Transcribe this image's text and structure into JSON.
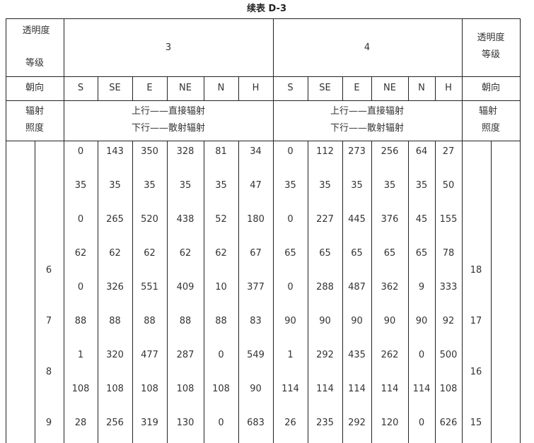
{
  "title": "续表 D-3",
  "header": {
    "left_grade_label_line1": "透明度",
    "left_grade_label_line2": "等级",
    "group_3": "3",
    "group_4": "4",
    "right_grade_label_line1": "透明度",
    "right_grade_label_line2": "等级",
    "orientation_label": "朝向",
    "orientations": [
      "S",
      "SE",
      "E",
      "NE",
      "N",
      "H",
      "S",
      "SE",
      "E",
      "NE",
      "N",
      "H"
    ],
    "irradiance_label_line1": "辐射",
    "irradiance_label_line2": "照度",
    "legend_line1": "上行——直接辐射",
    "legend_line2": "下行——散射辐射"
  },
  "rows": [
    [
      "0",
      "143",
      "350",
      "328",
      "81",
      "34",
      "0",
      "112",
      "273",
      "256",
      "64",
      "27"
    ],
    [
      "35",
      "35",
      "35",
      "35",
      "35",
      "47",
      "35",
      "35",
      "35",
      "35",
      "35",
      "50"
    ],
    [
      "0",
      "265",
      "520",
      "438",
      "52",
      "180",
      "0",
      "227",
      "445",
      "376",
      "45",
      "155"
    ],
    [
      "62",
      "62",
      "62",
      "62",
      "62",
      "67",
      "65",
      "65",
      "65",
      "65",
      "65",
      "78"
    ],
    [
      "0",
      "326",
      "551",
      "409",
      "10",
      "377",
      "0",
      "288",
      "487",
      "362",
      "9",
      "333"
    ],
    [
      "88",
      "88",
      "88",
      "88",
      "88",
      "83",
      "90",
      "90",
      "90",
      "90",
      "90",
      "92"
    ],
    [
      "1",
      "320",
      "477",
      "287",
      "0",
      "549",
      "1",
      "292",
      "435",
      "262",
      "0",
      "500"
    ],
    [
      "108",
      "108",
      "108",
      "108",
      "108",
      "90",
      "114",
      "114",
      "114",
      "114",
      "114",
      "108"
    ],
    [
      "28",
      "256",
      "319",
      "130",
      "0",
      "683",
      "26",
      "235",
      "292",
      "120",
      "0",
      "626"
    ]
  ],
  "left_labels": [
    "6",
    "7",
    "8",
    "9"
  ],
  "right_labels": [
    "18",
    "17",
    "16",
    "15"
  ]
}
